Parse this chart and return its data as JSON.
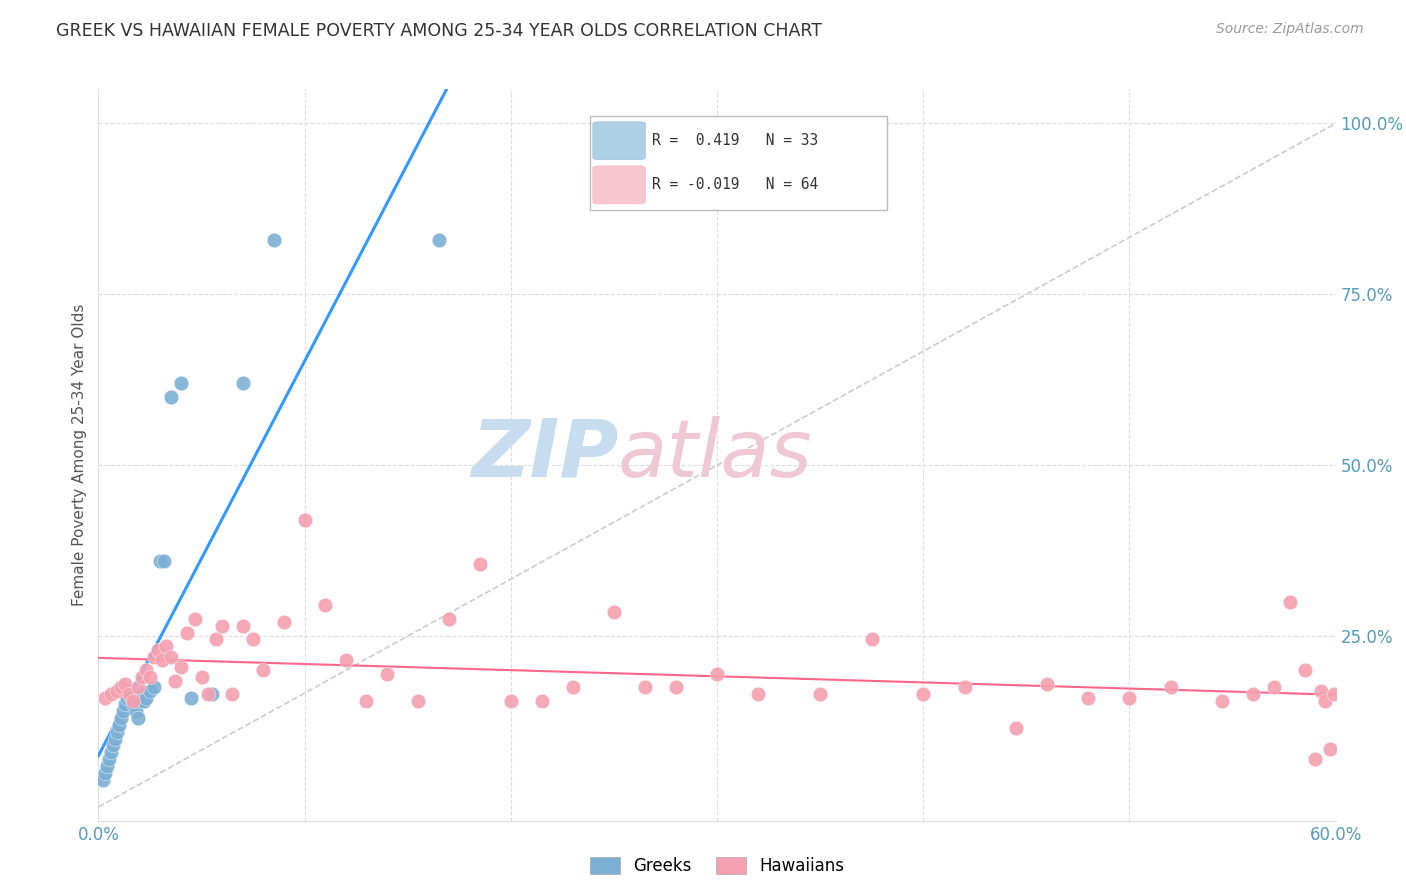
{
  "title": "GREEK VS HAWAIIAN FEMALE POVERTY AMONG 25-34 YEAR OLDS CORRELATION CHART",
  "source": "Source: ZipAtlas.com",
  "ylabel": "Female Poverty Among 25-34 Year Olds",
  "xlim": [
    0.0,
    0.6
  ],
  "ylim": [
    -0.02,
    1.05
  ],
  "greek_color": "#7BAFD4",
  "hawaiian_color": "#F4A0B0",
  "greek_line_color": "#3399FF",
  "hawaiian_line_color": "#FF6688",
  "diag_color": "#CCCCCC",
  "grid_color": "#DDDDDD",
  "tick_color": "#5599BB",
  "watermark_color": "#C8DCF0",
  "watermark_pink": "#F0C8D4",
  "greek_points_x": [
    0.002,
    0.003,
    0.004,
    0.005,
    0.006,
    0.007,
    0.008,
    0.009,
    0.01,
    0.011,
    0.012,
    0.013,
    0.014,
    0.015,
    0.016,
    0.017,
    0.018,
    0.019,
    0.02,
    0.021,
    0.022,
    0.023,
    0.025,
    0.027,
    0.03,
    0.032,
    0.035,
    0.04,
    0.045,
    0.055,
    0.07,
    0.085,
    0.165
  ],
  "greek_points_y": [
    0.04,
    0.05,
    0.06,
    0.07,
    0.08,
    0.09,
    0.1,
    0.11,
    0.12,
    0.13,
    0.14,
    0.15,
    0.16,
    0.17,
    0.16,
    0.15,
    0.14,
    0.13,
    0.155,
    0.165,
    0.155,
    0.16,
    0.17,
    0.175,
    0.36,
    0.36,
    0.6,
    0.62,
    0.16,
    0.165,
    0.62,
    0.83,
    0.83
  ],
  "hawaiian_points_x": [
    0.003,
    0.006,
    0.009,
    0.011,
    0.013,
    0.015,
    0.017,
    0.019,
    0.021,
    0.023,
    0.025,
    0.027,
    0.029,
    0.031,
    0.033,
    0.035,
    0.037,
    0.04,
    0.043,
    0.047,
    0.05,
    0.053,
    0.057,
    0.06,
    0.065,
    0.07,
    0.075,
    0.08,
    0.09,
    0.1,
    0.11,
    0.12,
    0.13,
    0.14,
    0.155,
    0.17,
    0.185,
    0.2,
    0.215,
    0.23,
    0.25,
    0.265,
    0.28,
    0.3,
    0.32,
    0.35,
    0.375,
    0.4,
    0.42,
    0.445,
    0.46,
    0.48,
    0.5,
    0.52,
    0.545,
    0.56,
    0.57,
    0.578,
    0.585,
    0.59,
    0.593,
    0.595,
    0.597,
    0.599
  ],
  "hawaiian_points_y": [
    0.16,
    0.165,
    0.17,
    0.175,
    0.18,
    0.165,
    0.155,
    0.175,
    0.19,
    0.2,
    0.19,
    0.22,
    0.23,
    0.215,
    0.235,
    0.22,
    0.185,
    0.205,
    0.255,
    0.275,
    0.19,
    0.165,
    0.245,
    0.265,
    0.165,
    0.265,
    0.245,
    0.2,
    0.27,
    0.42,
    0.295,
    0.215,
    0.155,
    0.195,
    0.155,
    0.275,
    0.355,
    0.155,
    0.155,
    0.175,
    0.285,
    0.175,
    0.175,
    0.195,
    0.165,
    0.165,
    0.245,
    0.165,
    0.175,
    0.115,
    0.18,
    0.16,
    0.16,
    0.175,
    0.155,
    0.165,
    0.175,
    0.3,
    0.2,
    0.07,
    0.17,
    0.155,
    0.085,
    0.165
  ]
}
